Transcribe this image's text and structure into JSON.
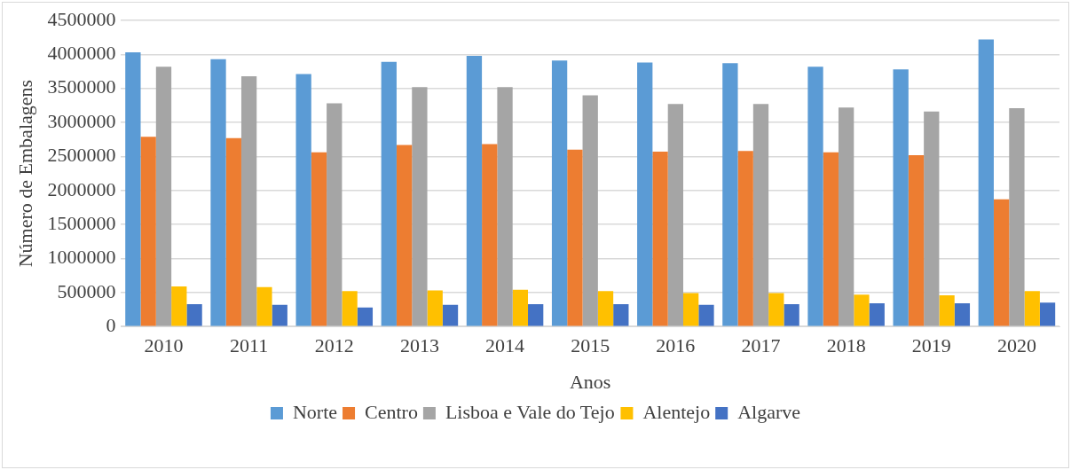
{
  "chart_data": {
    "type": "bar",
    "xlabel": "Anos",
    "ylabel": "Número de Embalagens",
    "categories": [
      "2010",
      "2011",
      "2012",
      "2013",
      "2014",
      "2015",
      "2016",
      "2017",
      "2018",
      "2019",
      "2020"
    ],
    "series": [
      {
        "name": "Norte",
        "color": "#5b9bd5",
        "values": [
          4030000,
          3930000,
          3710000,
          3890000,
          3980000,
          3910000,
          3880000,
          3870000,
          3820000,
          3780000,
          4220000
        ]
      },
      {
        "name": "Centro",
        "color": "#ed7d31",
        "values": [
          2790000,
          2770000,
          2560000,
          2670000,
          2680000,
          2600000,
          2570000,
          2580000,
          2560000,
          2520000,
          1870000
        ]
      },
      {
        "name": "Lisboa e Vale do Tejo",
        "color": "#a5a5a5",
        "values": [
          3820000,
          3680000,
          3280000,
          3520000,
          3520000,
          3400000,
          3270000,
          3270000,
          3220000,
          3160000,
          3210000
        ]
      },
      {
        "name": "Alentejo",
        "color": "#ffc000",
        "values": [
          590000,
          580000,
          520000,
          530000,
          540000,
          520000,
          490000,
          490000,
          470000,
          460000,
          520000
        ]
      },
      {
        "name": "Algarve",
        "color": "#4472c4",
        "values": [
          330000,
          320000,
          280000,
          320000,
          330000,
          330000,
          320000,
          330000,
          340000,
          340000,
          350000
        ]
      }
    ],
    "ylim": [
      0,
      4500000
    ],
    "yticks": [
      0,
      500000,
      1000000,
      1500000,
      2000000,
      2500000,
      3000000,
      3500000,
      4000000,
      4500000
    ],
    "grid": "y",
    "legend": "bottom"
  }
}
